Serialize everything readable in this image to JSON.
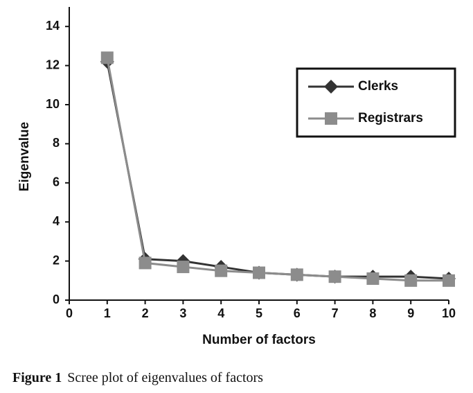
{
  "chart_data": {
    "type": "line",
    "x_label": "Number of factors",
    "y_label": "Eigenvalue",
    "x": [
      1,
      2,
      3,
      4,
      5,
      6,
      7,
      8,
      9,
      10
    ],
    "series": [
      {
        "name": "Clerks",
        "color": "#333333",
        "marker": "diamond",
        "values": [
          12.2,
          2.1,
          2.0,
          1.7,
          1.4,
          1.3,
          1.2,
          1.2,
          1.2,
          1.1
        ]
      },
      {
        "name": "Registrars",
        "color": "#8c8c8c",
        "marker": "square",
        "values": [
          12.4,
          1.9,
          1.7,
          1.5,
          1.4,
          1.3,
          1.2,
          1.1,
          1.0,
          1.0
        ]
      }
    ],
    "xlim": [
      0,
      10
    ],
    "xticks": [
      0,
      1,
      2,
      3,
      4,
      5,
      6,
      7,
      8,
      9,
      10
    ],
    "ylim": [
      0,
      15
    ],
    "yticks": [
      0,
      2,
      4,
      6,
      8,
      10,
      12,
      14
    ],
    "grid": false,
    "legend": "upper right"
  },
  "caption": {
    "label": "Figure 1",
    "text": "Scree plot of eigenvalues of factors"
  }
}
